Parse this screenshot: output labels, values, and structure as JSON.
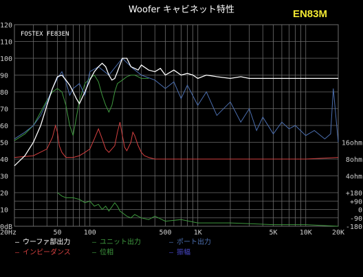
{
  "title": "Woofer キャビネット特性",
  "model_tag": "EN83M",
  "inset_label": "FOSTEX FE83EN",
  "colors": {
    "background": "#000000",
    "grid": "#6e6e6e",
    "title": "#ffffff",
    "model_tag": "#f2e832",
    "inset_label": "#ffffff",
    "axis_text": "#cfcfcf",
    "woofer": "#ffffff",
    "unit": "#3f9a3f",
    "port": "#4c6fb0",
    "impedance": "#d44040",
    "phase": "#3f9a3f",
    "excursion": "#4848c8"
  },
  "chart_data": {
    "type": "line",
    "title": "Woofer キャビネット特性",
    "x_scale": "log",
    "xlim": [
      20,
      20000
    ],
    "ylim": [
      0,
      120
    ],
    "grid": true,
    "legend_position": "bottom",
    "x_ticks": [
      {
        "v": 20,
        "label": "20Hz"
      },
      {
        "v": 50,
        "label": "50"
      },
      {
        "v": 100,
        "label": "100"
      },
      {
        "v": 500,
        "label": "500"
      },
      {
        "v": 1000,
        "label": "1K"
      },
      {
        "v": 5000,
        "label": "5K"
      },
      {
        "v": 10000,
        "label": "10K"
      },
      {
        "v": 20000,
        "label": "20K"
      }
    ],
    "y_ticks_left": [
      "0dB",
      "10",
      "20",
      "30",
      "40",
      "50",
      "60",
      "70",
      "80",
      "90",
      "100",
      "110",
      "120"
    ],
    "y_ticks_right": [
      {
        "y": 50,
        "label": "16ohm"
      },
      {
        "y": 40,
        "label": "8ohm"
      },
      {
        "y": 30,
        "label": "4ohm"
      },
      {
        "y": 20,
        "label": "+180"
      },
      {
        "y": 15,
        "label": "+90"
      },
      {
        "y": 10,
        "label": "0"
      },
      {
        "y": 5,
        "label": "-90"
      },
      {
        "y": 0,
        "label": "-180"
      }
    ],
    "series": [
      {
        "key": "woofer",
        "name": "ウーファ部出力",
        "x": [
          20,
          25,
          30,
          35,
          40,
          45,
          50,
          55,
          60,
          65,
          70,
          75,
          80,
          90,
          100,
          110,
          120,
          130,
          140,
          150,
          160,
          170,
          180,
          200,
          220,
          240,
          260,
          280,
          300,
          350,
          400,
          450,
          500,
          600,
          700,
          800,
          900,
          1000,
          1200,
          1500,
          2000,
          2500,
          3000,
          4000,
          5000,
          7000,
          10000,
          15000,
          20000
        ],
        "y": [
          36,
          42,
          50,
          60,
          72,
          82,
          89,
          90,
          87,
          84,
          80,
          76,
          73,
          80,
          87,
          92,
          95,
          97,
          95,
          90,
          87,
          88,
          92,
          100,
          100,
          95,
          94,
          93,
          96,
          93,
          92,
          94,
          90,
          93,
          90,
          91,
          90,
          88,
          90,
          89,
          88,
          89,
          88,
          88,
          88,
          88,
          88,
          88,
          88
        ]
      },
      {
        "key": "unit",
        "name": "ユニット出力",
        "x": [
          20,
          25,
          30,
          35,
          40,
          45,
          50,
          55,
          60,
          65,
          70,
          80,
          90,
          100,
          110,
          120,
          130,
          140,
          150,
          160,
          170,
          180,
          200,
          220,
          240,
          260,
          280,
          300,
          350
        ],
        "y": [
          51,
          55,
          60,
          68,
          75,
          80,
          82,
          80,
          72,
          60,
          54,
          75,
          85,
          88,
          90,
          86,
          78,
          72,
          68,
          72,
          80,
          85,
          87,
          89,
          90,
          90,
          89,
          88,
          88
        ]
      },
      {
        "key": "port",
        "name": "ポート出力",
        "x": [
          20,
          25,
          30,
          35,
          40,
          45,
          50,
          55,
          60,
          65,
          70,
          80,
          90,
          100,
          120,
          150,
          200,
          250,
          300,
          400,
          500,
          600,
          700,
          800,
          1000,
          1200,
          1500,
          2000,
          2500,
          3000,
          3500,
          4000,
          5000,
          6000,
          7000,
          8000,
          10000,
          12000,
          15000,
          17000,
          18000,
          20000
        ],
        "y": [
          52,
          56,
          60,
          66,
          74,
          82,
          88,
          92,
          86,
          78,
          82,
          85,
          78,
          92,
          95,
          90,
          100,
          94,
          90,
          87,
          82,
          86,
          76,
          84,
          72,
          80,
          66,
          74,
          62,
          70,
          57,
          65,
          55,
          62,
          58,
          60,
          54,
          57,
          52,
          55,
          82,
          50
        ]
      },
      {
        "key": "impedance",
        "name": "インピーダンス",
        "x": [
          20,
          30,
          40,
          45,
          48,
          50,
          52,
          55,
          60,
          70,
          80,
          90,
          100,
          110,
          120,
          130,
          140,
          150,
          170,
          180,
          190,
          200,
          210,
          220,
          240,
          250,
          260,
          280,
          300,
          320,
          350,
          400,
          500,
          700,
          1000,
          2000,
          5000,
          10000,
          20000
        ],
        "y": [
          41,
          42,
          46,
          53,
          60,
          56,
          48,
          44,
          41,
          41,
          42,
          44,
          46,
          52,
          58,
          52,
          46,
          44,
          48,
          56,
          62,
          54,
          47,
          45,
          50,
          56,
          54,
          48,
          44,
          42,
          41,
          40,
          40,
          40,
          40,
          40,
          40,
          40,
          41
        ]
      },
      {
        "key": "phase",
        "name": "位相",
        "x": [
          50,
          55,
          60,
          70,
          80,
          90,
          100,
          110,
          120,
          130,
          140,
          150,
          170,
          180,
          190,
          200,
          220,
          240,
          260,
          300,
          350,
          400,
          500,
          700,
          1000,
          2000,
          5000,
          10000,
          20000
        ],
        "y": [
          20,
          18,
          17,
          17,
          16,
          14,
          15,
          12,
          13,
          10,
          12,
          9,
          14,
          12,
          9,
          8,
          6,
          5,
          7,
          5,
          4,
          6,
          3,
          4,
          2,
          2,
          1,
          1,
          0
        ]
      },
      {
        "key": "excursion",
        "name": "振幅",
        "x": [],
        "y": []
      }
    ]
  }
}
